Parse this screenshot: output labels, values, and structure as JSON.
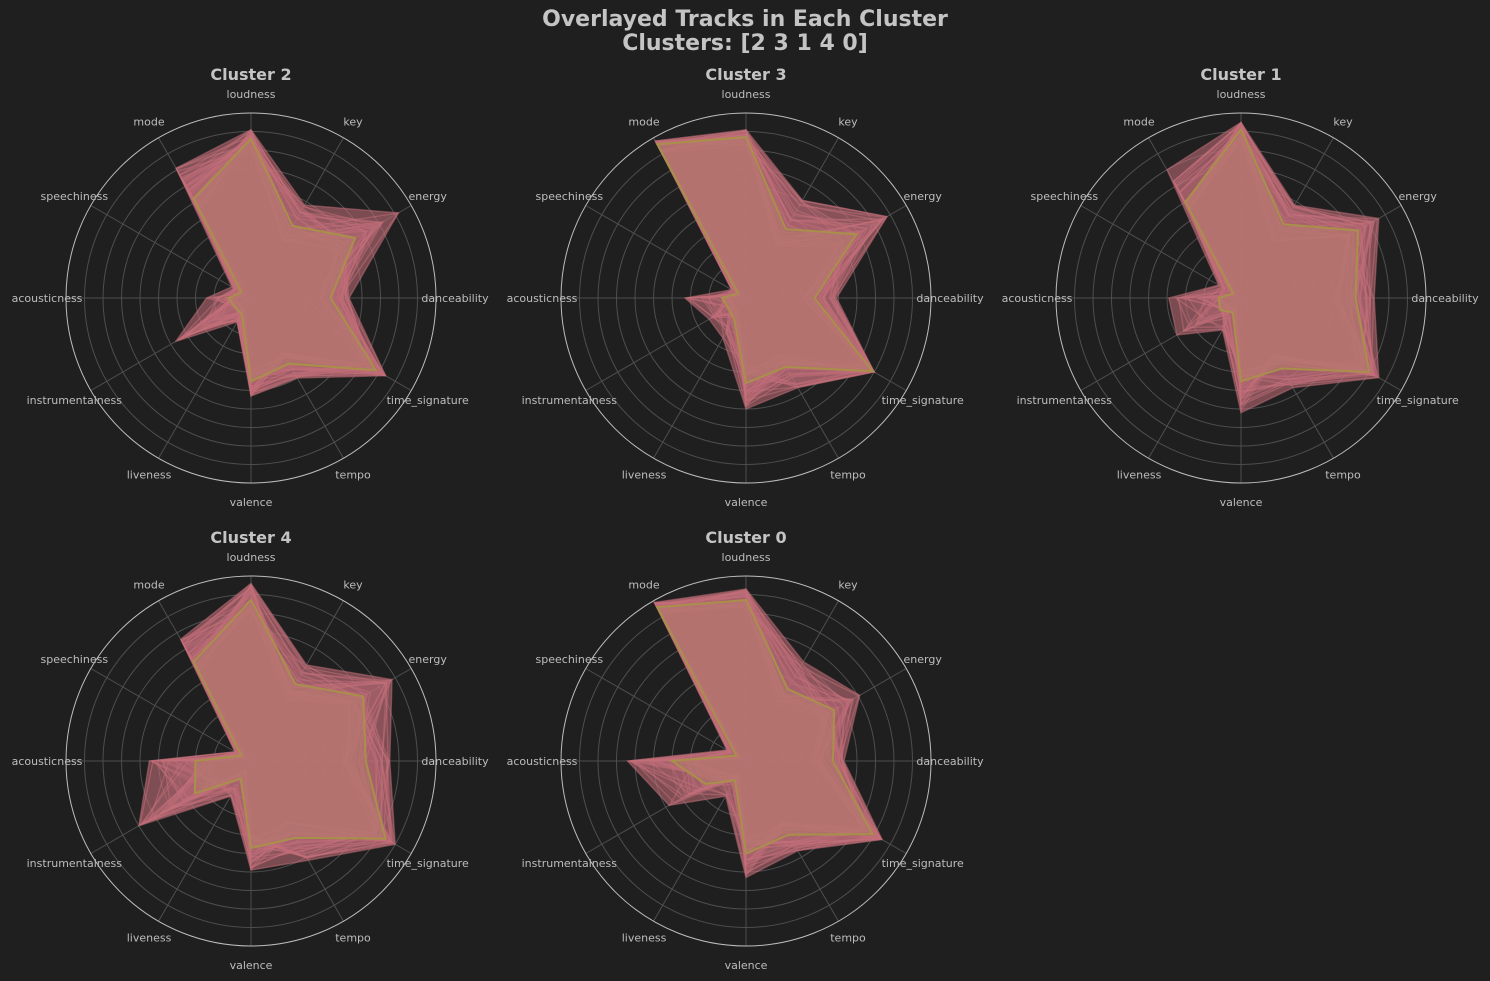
{
  "chart_data": {
    "type": "radar",
    "title": "Overlayed Tracks in Each Cluster",
    "subtitle": "Clusters: [2 3 1 4 0]",
    "features": [
      "danceability",
      "energy",
      "key",
      "loudness",
      "mode",
      "speechiness",
      "acousticness",
      "instrumentalness",
      "liveness",
      "valence",
      "tempo",
      "time_signature"
    ],
    "rlim": [
      0,
      1
    ],
    "grid": true,
    "colors": {
      "background": "#1f1f1f",
      "tracks": "#c46f7a",
      "mean": "#a8904a",
      "text": "#c4c4c4",
      "grid": "#4e4e4e",
      "outer_ring": "#bdbdbd"
    },
    "panels": [
      {
        "title": "Cluster 2",
        "mean": [
          0.43,
          0.65,
          0.45,
          0.86,
          0.62,
          0.06,
          0.12,
          0.1,
          0.1,
          0.45,
          0.41,
          0.78
        ],
        "envelope": [
          0.53,
          0.92,
          0.58,
          0.91,
          0.81,
          0.12,
          0.24,
          0.47,
          0.15,
          0.53,
          0.5,
          0.84
        ],
        "low": [
          0.3,
          0.52,
          0.35,
          0.8,
          0.55,
          0.03,
          0.08,
          0.06,
          0.07,
          0.38,
          0.33,
          0.7
        ]
      },
      {
        "title": "Cluster 3",
        "mean": [
          0.37,
          0.69,
          0.43,
          0.87,
          0.96,
          0.05,
          0.13,
          0.11,
          0.13,
          0.46,
          0.43,
          0.79
        ],
        "envelope": [
          0.49,
          0.88,
          0.61,
          0.91,
          0.98,
          0.09,
          0.33,
          0.23,
          0.25,
          0.6,
          0.56,
          0.8
        ],
        "low": [
          0.3,
          0.55,
          0.32,
          0.82,
          0.9,
          0.03,
          0.07,
          0.07,
          0.08,
          0.38,
          0.35,
          0.72
        ]
      },
      {
        "title": "Cluster 1",
        "mean": [
          0.62,
          0.73,
          0.46,
          0.91,
          0.6,
          0.05,
          0.12,
          0.13,
          0.09,
          0.45,
          0.44,
          0.8
        ],
        "envelope": [
          0.72,
          0.86,
          0.58,
          0.95,
          0.8,
          0.14,
          0.39,
          0.4,
          0.2,
          0.62,
          0.56,
          0.86
        ],
        "low": [
          0.5,
          0.62,
          0.35,
          0.85,
          0.55,
          0.03,
          0.12,
          0.08,
          0.05,
          0.38,
          0.35,
          0.72
        ]
      },
      {
        "title": "Cluster 4",
        "mean": [
          0.62,
          0.7,
          0.48,
          0.87,
          0.62,
          0.06,
          0.3,
          0.35,
          0.11,
          0.47,
          0.48,
          0.84
        ],
        "envelope": [
          0.75,
          0.88,
          0.6,
          0.96,
          0.76,
          0.1,
          0.55,
          0.7,
          0.22,
          0.59,
          0.62,
          0.9
        ],
        "low": [
          0.5,
          0.6,
          0.38,
          0.8,
          0.55,
          0.03,
          0.2,
          0.2,
          0.06,
          0.4,
          0.38,
          0.75
        ]
      },
      {
        "title": "Cluster 0",
        "mean": [
          0.47,
          0.55,
          0.45,
          0.87,
          0.96,
          0.06,
          0.4,
          0.25,
          0.12,
          0.5,
          0.46,
          0.79
        ],
        "envelope": [
          0.53,
          0.71,
          0.62,
          0.93,
          0.99,
          0.12,
          0.64,
          0.48,
          0.22,
          0.63,
          0.56,
          0.85
        ],
        "low": [
          0.35,
          0.45,
          0.35,
          0.82,
          0.9,
          0.03,
          0.25,
          0.12,
          0.07,
          0.42,
          0.38,
          0.72
        ]
      }
    ]
  }
}
